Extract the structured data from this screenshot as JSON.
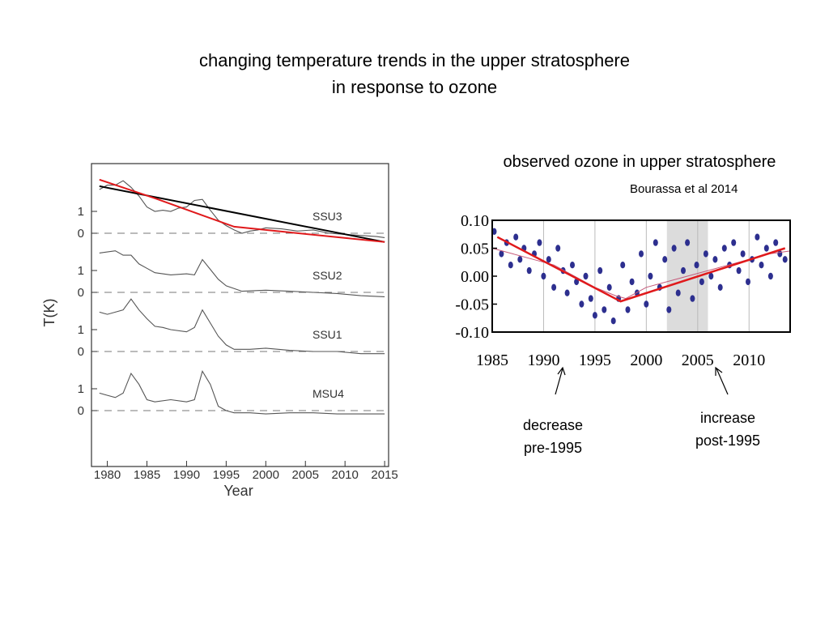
{
  "slide": {
    "title_line1": "changing temperature trends in the upper stratosphere",
    "title_line2": "in response to ozone"
  },
  "right_panel": {
    "title": "observed ozone in upper stratosphere",
    "citation": "Bourassa et al 2014"
  },
  "annotations": {
    "decrease_line1": "decrease",
    "decrease_line2": "pre-1995",
    "increase_line1": "increase",
    "increase_line2": "post-1995"
  },
  "colors": {
    "trend_red": "#e0191b",
    "trend_black": "#000000",
    "data_gray": "#555555",
    "ozone_dots": "#2d2f8f",
    "ozone_shade": "#dcdcdc"
  },
  "chart_data": [
    {
      "type": "line",
      "title": "",
      "xlabel": "Year",
      "ylabel": "T(K)",
      "xlim": [
        1978,
        2015.5
      ],
      "x_ticks": [
        "1980",
        "1985",
        "1990",
        "1995",
        "2000",
        "2005",
        "2010",
        "2015"
      ],
      "panel_y_ticks": [
        "1",
        "0"
      ],
      "series": [
        {
          "name": "SSU3",
          "x": [
            1979,
            1980,
            1981,
            1982,
            1983,
            1984,
            1985,
            1986,
            1987,
            1988,
            1989,
            1990,
            1991,
            1992,
            1993,
            1994,
            1995,
            1996,
            1997,
            1998,
            1999,
            2000,
            2002,
            2004,
            2006,
            2008,
            2010,
            2012,
            2014,
            2015
          ],
          "values": [
            2.0,
            2.2,
            2.2,
            2.4,
            2.1,
            1.7,
            1.2,
            1.0,
            1.05,
            1.0,
            1.15,
            1.2,
            1.5,
            1.55,
            1.05,
            0.6,
            0.35,
            0.15,
            0.0,
            0.1,
            0.15,
            0.25,
            0.2,
            0.1,
            0.15,
            0.0,
            -0.05,
            -0.1,
            -0.15,
            -0.2
          ]
        },
        {
          "name": "SSU2",
          "x": [
            1979,
            1981,
            1982,
            1983,
            1984,
            1985,
            1986,
            1988,
            1990,
            1991,
            1992,
            1993,
            1994,
            1995,
            1997,
            2000,
            2003,
            2006,
            2009,
            2012,
            2015
          ],
          "values": [
            1.8,
            1.9,
            1.7,
            1.7,
            1.3,
            1.1,
            0.9,
            0.8,
            0.85,
            0.8,
            1.5,
            1.05,
            0.6,
            0.3,
            0.05,
            0.1,
            0.05,
            0.0,
            -0.05,
            -0.15,
            -0.2
          ]
        },
        {
          "name": "SSU1",
          "x": [
            1979,
            1980,
            1981,
            1982,
            1983,
            1984,
            1985,
            1986,
            1987,
            1988,
            1990,
            1991,
            1992,
            1993,
            1994,
            1995,
            1996,
            1998,
            2000,
            2003,
            2006,
            2009,
            2012,
            2015
          ],
          "values": [
            1.8,
            1.7,
            1.8,
            1.9,
            2.4,
            1.9,
            1.5,
            1.15,
            1.1,
            1.0,
            0.9,
            1.1,
            1.9,
            1.3,
            0.7,
            0.3,
            0.1,
            0.1,
            0.15,
            0.05,
            0.0,
            0.0,
            -0.1,
            -0.1
          ]
        },
        {
          "name": "MSU4",
          "x": [
            1979,
            1980,
            1981,
            1982,
            1983,
            1984,
            1985,
            1986,
            1988,
            1990,
            1991,
            1992,
            1993,
            1994,
            1995,
            1996,
            1998,
            2000,
            2003,
            2006,
            2009,
            2012,
            2015
          ],
          "values": [
            0.8,
            0.7,
            0.6,
            0.8,
            1.7,
            1.2,
            0.5,
            0.4,
            0.5,
            0.4,
            0.5,
            1.8,
            1.2,
            0.2,
            0.0,
            -0.1,
            -0.1,
            -0.15,
            -0.1,
            -0.1,
            -0.15,
            -0.15,
            -0.15
          ]
        }
      ],
      "trend_lines": [
        {
          "name": "SSU3 linear trend",
          "color": "black",
          "x": [
            1979,
            2015
          ],
          "values": [
            2.15,
            -0.4
          ]
        },
        {
          "name": "SSU3 piecewise trend",
          "color": "red",
          "x": [
            1979,
            1986,
            1996,
            2015
          ],
          "values": [
            2.45,
            1.6,
            0.3,
            -0.4
          ]
        }
      ]
    },
    {
      "type": "scatter",
      "title": "observed ozone in upper stratosphere",
      "xlabel": "",
      "ylabel": "",
      "xlim": [
        1985,
        2014
      ],
      "ylim": [
        -0.1,
        0.1
      ],
      "x_ticks": [
        "1985",
        "1990",
        "1995",
        "2000",
        "2005",
        "2010"
      ],
      "y_ticks": [
        "0.10",
        "0.05",
        "0.00",
        "-0.05",
        "-0.10"
      ],
      "shaded_period": [
        2002,
        2006
      ],
      "series": [
        {
          "name": "ozone anomaly",
          "x": [
            1985.2,
            1985.9,
            1986.4,
            1986.8,
            1987.3,
            1987.7,
            1988.1,
            1988.6,
            1989.1,
            1989.6,
            1990.0,
            1990.5,
            1991.0,
            1991.4,
            1991.9,
            1992.3,
            1992.8,
            1993.2,
            1993.7,
            1994.1,
            1994.6,
            1995.0,
            1995.5,
            1995.9,
            1996.4,
            1996.8,
            1997.3,
            1997.7,
            1998.2,
            1998.6,
            1999.1,
            1999.5,
            2000.0,
            2000.4,
            2000.9,
            2001.3,
            2001.8,
            2002.2,
            2002.7,
            2003.1,
            2003.6,
            2004.0,
            2004.5,
            2004.9,
            2005.4,
            2005.8,
            2006.3,
            2006.7,
            2007.2,
            2007.6,
            2008.1,
            2008.5,
            2009.0,
            2009.4,
            2009.9,
            2010.3,
            2010.8,
            2011.2,
            2011.7,
            2012.1,
            2012.6,
            2013.0,
            2013.5
          ],
          "values": [
            0.08,
            0.04,
            0.06,
            0.02,
            0.07,
            0.03,
            0.05,
            0.01,
            0.04,
            0.06,
            0.0,
            0.03,
            -0.02,
            0.05,
            0.01,
            -0.03,
            0.02,
            -0.01,
            -0.05,
            0.0,
            -0.04,
            -0.07,
            0.01,
            -0.06,
            -0.02,
            -0.08,
            -0.04,
            0.02,
            -0.06,
            -0.01,
            -0.03,
            0.04,
            -0.05,
            0.0,
            0.06,
            -0.02,
            0.03,
            -0.06,
            0.05,
            -0.03,
            0.01,
            0.06,
            -0.04,
            0.02,
            -0.01,
            0.04,
            0.0,
            0.03,
            -0.02,
            0.05,
            0.02,
            0.06,
            0.01,
            0.04,
            -0.01,
            0.03,
            0.07,
            0.02,
            0.05,
            0.0,
            0.06,
            0.04,
            0.03
          ]
        },
        {
          "name": "smoothed",
          "x": [
            1985,
            1987,
            1989,
            1991,
            1993,
            1995,
            1997,
            1998,
            2000,
            2002,
            2004,
            2006,
            2008,
            2010,
            2012,
            2014
          ],
          "values": [
            0.05,
            0.04,
            0.03,
            0.02,
            0.0,
            -0.02,
            -0.035,
            -0.04,
            -0.02,
            -0.01,
            0.0,
            0.01,
            0.02,
            0.03,
            0.04,
            0.045
          ]
        }
      ],
      "trend_lines": [
        {
          "name": "piecewise linear fit",
          "color": "red",
          "x": [
            1985.5,
            1997.5,
            2013.5
          ],
          "values": [
            0.07,
            -0.045,
            0.05
          ]
        }
      ]
    }
  ]
}
